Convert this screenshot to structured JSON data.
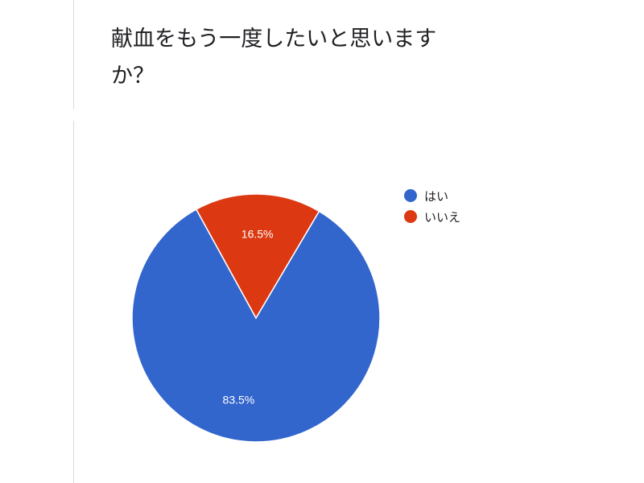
{
  "chart_data": {
    "type": "pie",
    "title": "献血をもう一度したいと思いますか？",
    "categories": [
      "はい",
      "いいえ"
    ],
    "values": [
      83.5,
      16.5
    ],
    "data_labels": [
      "83.5%",
      "16.5%"
    ],
    "colors": [
      "#3366cc",
      "#dc3912"
    ],
    "legend_position": "right"
  }
}
